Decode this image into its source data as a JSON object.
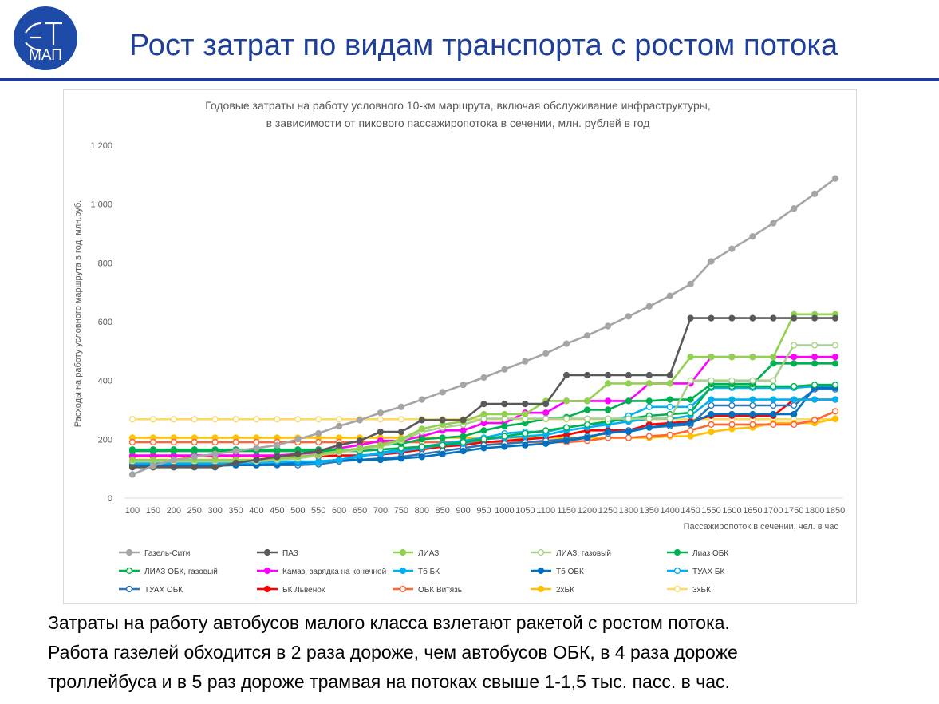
{
  "slide": {
    "logo_text_top": "ЭТ",
    "logo_text_bottom": "МАП",
    "title": "Рост затрат по видам транспорта с ростом потока",
    "caption_lines": [
      "Затраты на работу автобусов малого класса взлетают ракетой с ростом потока.",
      "Работа газелей обходится в 2 раза дороже, чем автобусов ОБК, в 4 раза дороже",
      "троллейбуса и в 5 раз дороже трамвая на потоках свыше 1-1,5 тыс. пасс. в час."
    ]
  },
  "colors": {
    "brand_blue": "#1d3f99",
    "logo_blue": "#1e4aa8"
  },
  "chart_data": {
    "type": "line",
    "title_lines": [
      "Годовые затраты на работу условного 10-км маршрута, включая обслуживание инфраструктуры,",
      "в зависимости от пикового пассажиропотока в сечении, млн. рублей в год"
    ],
    "xlabel": "Пассажиропоток в сечении, чел. в час",
    "ylabel": "Расходы на работу условного маршрута в год, млн.руб.",
    "ylim": [
      0,
      1200
    ],
    "yticks": [
      0,
      200,
      400,
      600,
      800,
      1000,
      1200
    ],
    "ytick_labels": [
      "0",
      "200",
      "400",
      "600",
      "800",
      "1 000",
      "1 200"
    ],
    "grid": false,
    "legend_position": "bottom",
    "x": [
      100,
      150,
      200,
      250,
      300,
      350,
      400,
      450,
      500,
      550,
      600,
      650,
      700,
      750,
      800,
      850,
      900,
      950,
      1000,
      1050,
      1100,
      1150,
      1200,
      1250,
      1300,
      1350,
      1400,
      1450,
      1550,
      1600,
      1650,
      1700,
      1750,
      1800,
      1850
    ],
    "series": [
      {
        "name": "Газель-Сити",
        "color": "#a5a5a5",
        "filled": true,
        "values": [
          80,
          110,
          130,
          140,
          150,
          160,
          170,
          180,
          200,
          220,
          245,
          265,
          290,
          310,
          335,
          360,
          385,
          410,
          438,
          465,
          492,
          525,
          553,
          585,
          618,
          652,
          688,
          728,
          805,
          848,
          890,
          935,
          985,
          1035,
          1087
        ]
      },
      {
        "name": "ПАЗ",
        "color": "#595959",
        "filled": true,
        "values": [
          105,
          105,
          105,
          105,
          105,
          120,
          130,
          140,
          150,
          160,
          180,
          195,
          225,
          225,
          265,
          265,
          265,
          320,
          320,
          320,
          320,
          418,
          418,
          418,
          418,
          418,
          418,
          612,
          612,
          612,
          612,
          612,
          612,
          612,
          612
        ]
      },
      {
        "name": "ЛИАЗ",
        "color": "#92d050",
        "filled": true,
        "values": [
          130,
          130,
          130,
          130,
          130,
          130,
          130,
          135,
          140,
          150,
          160,
          170,
          180,
          200,
          235,
          250,
          260,
          285,
          285,
          285,
          330,
          330,
          330,
          390,
          390,
          390,
          390,
          480,
          480,
          480,
          480,
          480,
          625,
          625,
          625
        ]
      },
      {
        "name": "ЛИАЗ, газовый",
        "color": "#a9d18e",
        "filled": false,
        "values": [
          125,
          125,
          125,
          125,
          125,
          125,
          125,
          130,
          135,
          145,
          155,
          165,
          175,
          195,
          225,
          240,
          250,
          270,
          270,
          270,
          270,
          270,
          270,
          270,
          270,
          270,
          270,
          400,
          400,
          400,
          400,
          400,
          520,
          520,
          520
        ]
      },
      {
        "name": "Лиаз ОБК",
        "color": "#00b050",
        "filled": true,
        "values": [
          165,
          165,
          165,
          165,
          165,
          165,
          165,
          165,
          165,
          165,
          165,
          165,
          180,
          185,
          200,
          205,
          210,
          230,
          245,
          255,
          270,
          275,
          300,
          300,
          330,
          330,
          335,
          335,
          388,
          388,
          388,
          458,
          458,
          458,
          458
        ]
      },
      {
        "name": "ЛИАЗ ОБК, газовый",
        "color": "#00b050",
        "filled": false,
        "values": [
          160,
          160,
          160,
          160,
          160,
          160,
          160,
          160,
          160,
          160,
          160,
          160,
          165,
          170,
          175,
          180,
          190,
          200,
          210,
          220,
          230,
          240,
          250,
          260,
          270,
          280,
          285,
          290,
          380,
          380,
          380,
          380,
          380,
          385,
          385
        ]
      },
      {
        "name": "Камаз, зарядка на конечной",
        "color": "#ff00ff",
        "filled": true,
        "values": [
          145,
          145,
          145,
          145,
          145,
          145,
          145,
          145,
          150,
          155,
          170,
          180,
          195,
          195,
          210,
          230,
          230,
          255,
          255,
          290,
          290,
          330,
          330,
          330,
          330,
          390,
          390,
          390,
          480,
          480,
          480,
          480,
          480,
          480,
          480
        ]
      },
      {
        "name": "Тб БК",
        "color": "#00b0f0",
        "filled": true,
        "values": [
          125,
          125,
          125,
          125,
          125,
          125,
          125,
          125,
          125,
          125,
          130,
          145,
          150,
          160,
          170,
          180,
          185,
          200,
          205,
          210,
          215,
          230,
          240,
          250,
          260,
          270,
          270,
          280,
          335,
          335,
          335,
          335,
          335,
          335,
          335
        ]
      },
      {
        "name": "Тб ОБК",
        "color": "#0070c0",
        "filled": true,
        "values": [
          110,
          110,
          110,
          110,
          110,
          112,
          112,
          115,
          120,
          125,
          130,
          130,
          130,
          135,
          140,
          150,
          160,
          170,
          175,
          180,
          185,
          195,
          205,
          225,
          225,
          240,
          250,
          255,
          285,
          285,
          285,
          285,
          285,
          375,
          375
        ]
      },
      {
        "name": "ТУАХ БК",
        "color": "#00b0f0",
        "filled": false,
        "values": [
          118,
          118,
          118,
          118,
          118,
          118,
          118,
          118,
          118,
          120,
          130,
          140,
          155,
          165,
          175,
          185,
          195,
          205,
          220,
          225,
          225,
          240,
          250,
          255,
          280,
          310,
          310,
          310,
          375,
          375,
          375,
          375,
          375,
          380,
          380
        ]
      },
      {
        "name": "ТУАХ ОБК",
        "color": "#2e75b6",
        "filled": false,
        "values": [
          112,
          112,
          112,
          112,
          112,
          112,
          112,
          112,
          112,
          115,
          125,
          130,
          135,
          140,
          150,
          160,
          170,
          180,
          185,
          190,
          195,
          200,
          210,
          220,
          230,
          240,
          245,
          250,
          315,
          315,
          315,
          315,
          315,
          370,
          370
        ]
      },
      {
        "name": "БК Львенок",
        "color": "#ff0000",
        "filled": true,
        "values": [
          142,
          142,
          142,
          142,
          142,
          142,
          142,
          142,
          142,
          142,
          145,
          145,
          148,
          155,
          165,
          175,
          180,
          190,
          195,
          200,
          205,
          215,
          230,
          230,
          230,
          250,
          255,
          260,
          280,
          280,
          280,
          280,
          335,
          335,
          335
        ]
      },
      {
        "name": "ОБК Витязь",
        "color": "#ff6633",
        "filled": false,
        "values": [
          190,
          190,
          190,
          190,
          190,
          190,
          190,
          190,
          190,
          190,
          190,
          190,
          190,
          190,
          190,
          190,
          190,
          190,
          190,
          190,
          190,
          190,
          195,
          205,
          205,
          210,
          215,
          230,
          250,
          250,
          250,
          250,
          250,
          265,
          295
        ]
      },
      {
        "name": "2хБК",
        "color": "#ffc000",
        "filled": true,
        "values": [
          205,
          205,
          205,
          205,
          205,
          205,
          205,
          205,
          205,
          205,
          205,
          205,
          205,
          205,
          205,
          205,
          205,
          205,
          205,
          205,
          205,
          205,
          205,
          205,
          205,
          205,
          210,
          210,
          225,
          235,
          240,
          255,
          255,
          255,
          270
        ]
      },
      {
        "name": "3хБК",
        "color": "#ffd966",
        "filled": false,
        "values": [
          268,
          268,
          268,
          268,
          268,
          268,
          268,
          268,
          268,
          268,
          268,
          268,
          268,
          268,
          268,
          268,
          268,
          268,
          268,
          268,
          268,
          268,
          268,
          268,
          268,
          268,
          268,
          268,
          268,
          268,
          268,
          268,
          268,
          268,
          268
        ]
      }
    ]
  }
}
